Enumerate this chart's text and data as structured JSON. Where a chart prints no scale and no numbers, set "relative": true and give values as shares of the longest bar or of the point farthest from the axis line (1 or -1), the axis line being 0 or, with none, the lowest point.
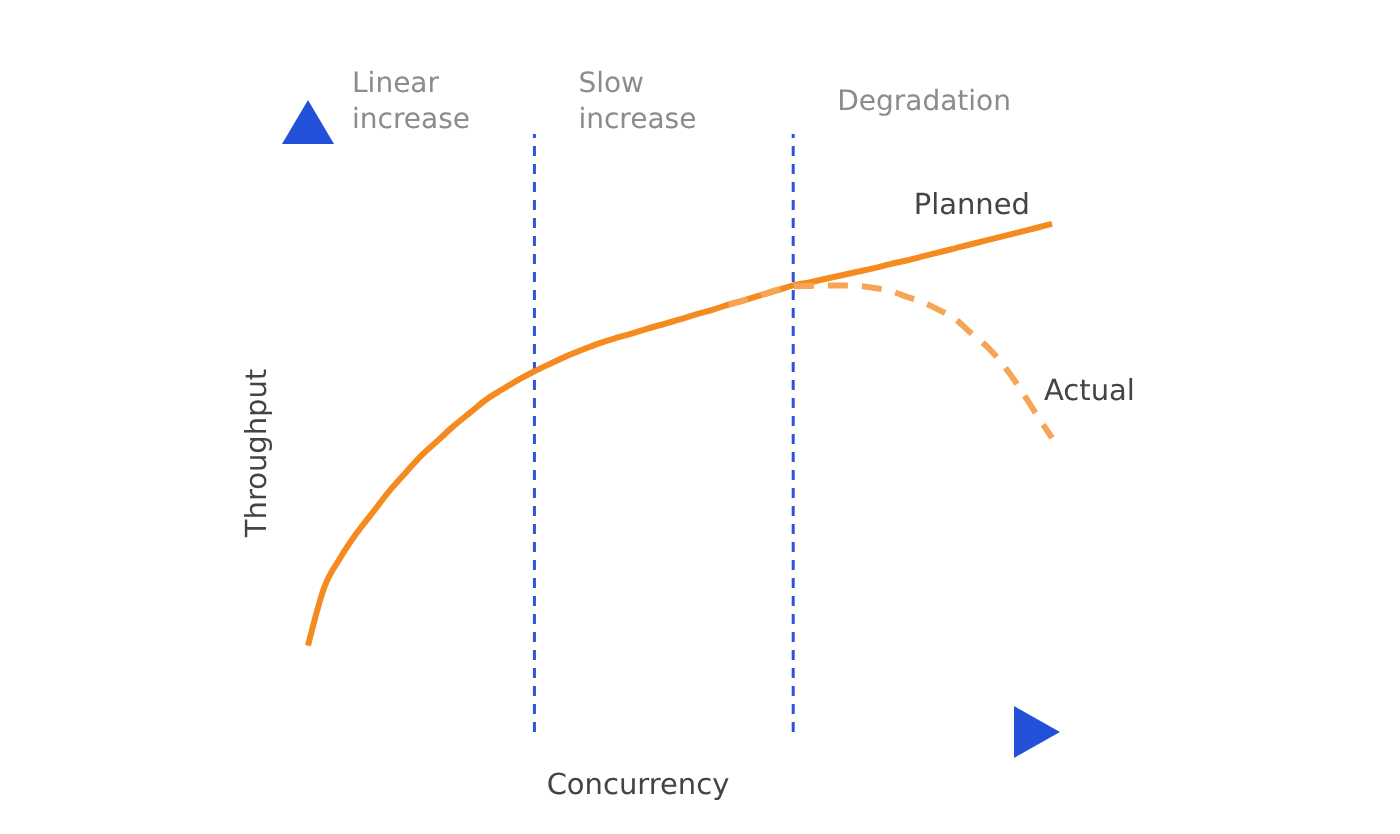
{
  "chart_data": {
    "type": "line",
    "relative": true,
    "xlabel": "Concurrency",
    "ylabel": "Throughput",
    "categories": [
      null,
      null,
      null,
      null,
      null,
      null,
      null,
      null,
      null,
      null,
      null,
      null,
      null,
      null,
      null,
      null,
      null,
      null,
      null,
      null,
      null,
      null,
      null,
      null,
      null,
      null,
      null,
      null,
      null,
      null,
      null,
      null,
      null,
      null,
      null,
      null,
      null,
      null,
      null,
      null,
      null,
      null,
      null,
      null,
      null,
      null,
      null
    ],
    "series": [
      {
        "name": "Planned",
        "color": "#f58a1f",
        "line_style": "solid",
        "values": [
          0.17,
          0.284,
          0.343,
          0.391,
          0.432,
          0.473,
          0.509,
          0.544,
          0.573,
          0.602,
          0.628,
          0.654,
          0.674,
          0.693,
          0.71,
          0.725,
          0.74,
          0.753,
          0.765,
          0.775,
          0.784,
          0.794,
          0.803,
          0.812,
          0.822,
          0.831,
          0.841,
          0.85,
          0.86,
          0.869,
          0.879,
          0.885,
          0.892,
          0.899,
          0.906,
          0.913,
          0.921,
          0.928,
          0.936,
          0.944,
          0.952,
          0.96,
          0.968,
          0.976,
          0.984,
          0.992,
          1
        ]
      },
      {
        "name": "Actual",
        "color": "#f6a455",
        "line_style": "dashed",
        "values": [
          null,
          null,
          null,
          null,
          null,
          null,
          null,
          null,
          null,
          null,
          null,
          null,
          null,
          null,
          null,
          null,
          null,
          null,
          null,
          null,
          null,
          null,
          null,
          null,
          null,
          null,
          0.841,
          0.85,
          0.86,
          0.87,
          0.877,
          0.878,
          0.879,
          0.879,
          0.878,
          0.874,
          0.868,
          0.857,
          0.846,
          0.831,
          0.813,
          0.785,
          0.758,
          0.722,
          0.677,
          0.627,
          0.579
        ]
      }
    ],
    "annotations": [
      "Linear increase",
      "Slow increase",
      "Degradation"
    ]
  }
}
